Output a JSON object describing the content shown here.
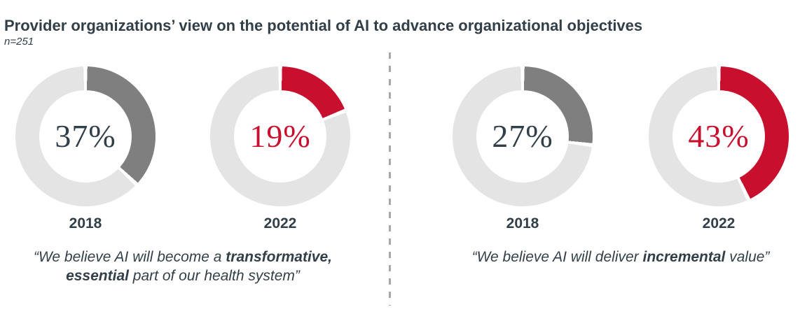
{
  "header": {
    "title": "Provider organizations’ view on the potential of AI to advance organizational objectives",
    "sample_size": "n=251"
  },
  "chart_data": {
    "type": "pie",
    "subtype": "donut",
    "title": "Provider organizations’ view on the potential of AI to advance organizational objectives",
    "sample_size_label": "n=251",
    "legend": "none",
    "remainder_color": "#E4E4E4",
    "start_angle_deg": 0,
    "direction": "clockwise",
    "groups": [
      {
        "name": "transformative-essential",
        "donuts": [
          {
            "year": "2018",
            "value": 37,
            "label": "37%",
            "color": "#7F7F7F",
            "text_color": "#333F48"
          },
          {
            "year": "2022",
            "value": 19,
            "label": "19%",
            "color": "#C8102E",
            "text_color": "#C8102E"
          }
        ],
        "quote_lines": [
          [
            {
              "t": "“We believe AI will become a ",
              "b": false
            },
            {
              "t": "transformative,",
              "b": true
            }
          ],
          [
            {
              "t": "essential",
              "b": true
            },
            {
              "t": " part of our health system”",
              "b": false
            }
          ]
        ]
      },
      {
        "name": "incremental-value",
        "donuts": [
          {
            "year": "2018",
            "value": 27,
            "label": "27%",
            "color": "#7F7F7F",
            "text_color": "#333F48"
          },
          {
            "year": "2022",
            "value": 43,
            "label": "43%",
            "color": "#C8102E",
            "text_color": "#C8102E"
          }
        ],
        "quote_lines": [
          [
            {
              "t": "“We believe AI will deliver ",
              "b": false
            },
            {
              "t": "incremental",
              "b": true
            },
            {
              "t": " value”",
              "b": false
            }
          ]
        ]
      }
    ]
  }
}
